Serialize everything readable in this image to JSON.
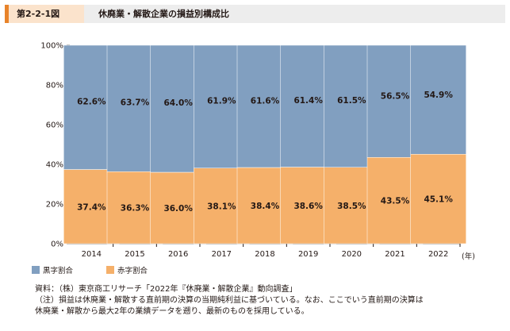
{
  "figure": {
    "number": "第2-2-1図",
    "title": "休廃業・解散企業の損益別構成比"
  },
  "chart_data": {
    "type": "bar",
    "stacked": true,
    "percent": true,
    "categories": [
      "2014",
      "2015",
      "2016",
      "2017",
      "2018",
      "2019",
      "2020",
      "2021",
      "2022"
    ],
    "x_unit": "(年)",
    "ylim": [
      0,
      100
    ],
    "yticks": [
      "0%",
      "20%",
      "40%",
      "60%",
      "80%",
      "100%"
    ],
    "grid": false,
    "series": [
      {
        "name": "赤字割合",
        "color": "#f5b06a",
        "values": [
          37.4,
          36.3,
          36.0,
          38.1,
          38.4,
          38.6,
          38.5,
          43.5,
          45.1
        ],
        "labels": [
          "37.4%",
          "36.3%",
          "36.0%",
          "38.1%",
          "38.4%",
          "38.6%",
          "38.5%",
          "43.5%",
          "45.1%"
        ]
      },
      {
        "name": "黒字割合",
        "color": "#819fc0",
        "values": [
          62.6,
          63.7,
          64.0,
          61.9,
          61.6,
          61.4,
          61.5,
          56.5,
          54.9
        ],
        "labels": [
          "62.6%",
          "63.7%",
          "64.0%",
          "61.9%",
          "61.6%",
          "61.4%",
          "61.5%",
          "56.5%",
          "54.9%"
        ]
      }
    ],
    "legend": {
      "placement": "bottom-left"
    }
  },
  "legend": {
    "black_label": "黒字割合",
    "red_label": "赤字割合"
  },
  "notes": {
    "source": "資料：（株）東京商工リサーチ「2022年『休廃業・解散企業』動向調査」",
    "note_line1": "（注）損益は休廃業・解散する直前期の決算の当期純利益に基づいている。なお、ここでいう直前期の決算は",
    "note_line2": "休廃業・解散から最大2年の業績データを遡り、最新のものを採用している。"
  }
}
